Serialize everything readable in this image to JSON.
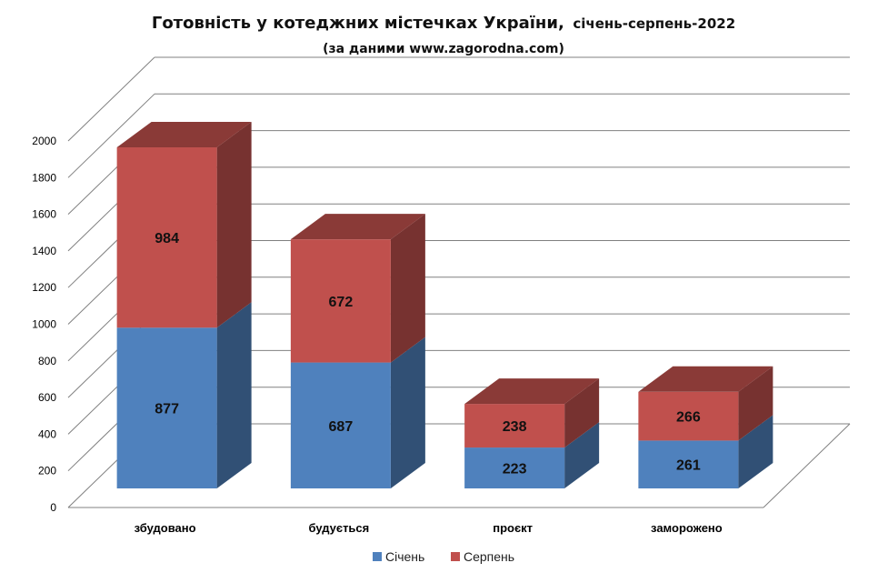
{
  "chart_data": {
    "type": "bar",
    "stacked": true,
    "three_d": true,
    "title": "Готовність у котеджних містечках України,",
    "title_suffix": "січень-серпень-2022",
    "subtitle": "(за даними www.zagorodna.com)",
    "categories": [
      "збудовано",
      "будується",
      "проєкт",
      "заморожено"
    ],
    "series": [
      {
        "name": "Січень",
        "values": [
          877,
          687,
          223,
          261
        ],
        "color": "#4f81bd"
      },
      {
        "name": "Серпень",
        "values": [
          984,
          672,
          238,
          266
        ],
        "color": "#c0504d"
      }
    ],
    "ylim": [
      0,
      2000
    ],
    "yticks": [
      "0",
      "200",
      "400",
      "600",
      "800",
      "1000",
      "1200",
      "1400",
      "1600",
      "1800",
      "2000"
    ],
    "grid": true,
    "legend": "bottom",
    "data_labels": true
  }
}
